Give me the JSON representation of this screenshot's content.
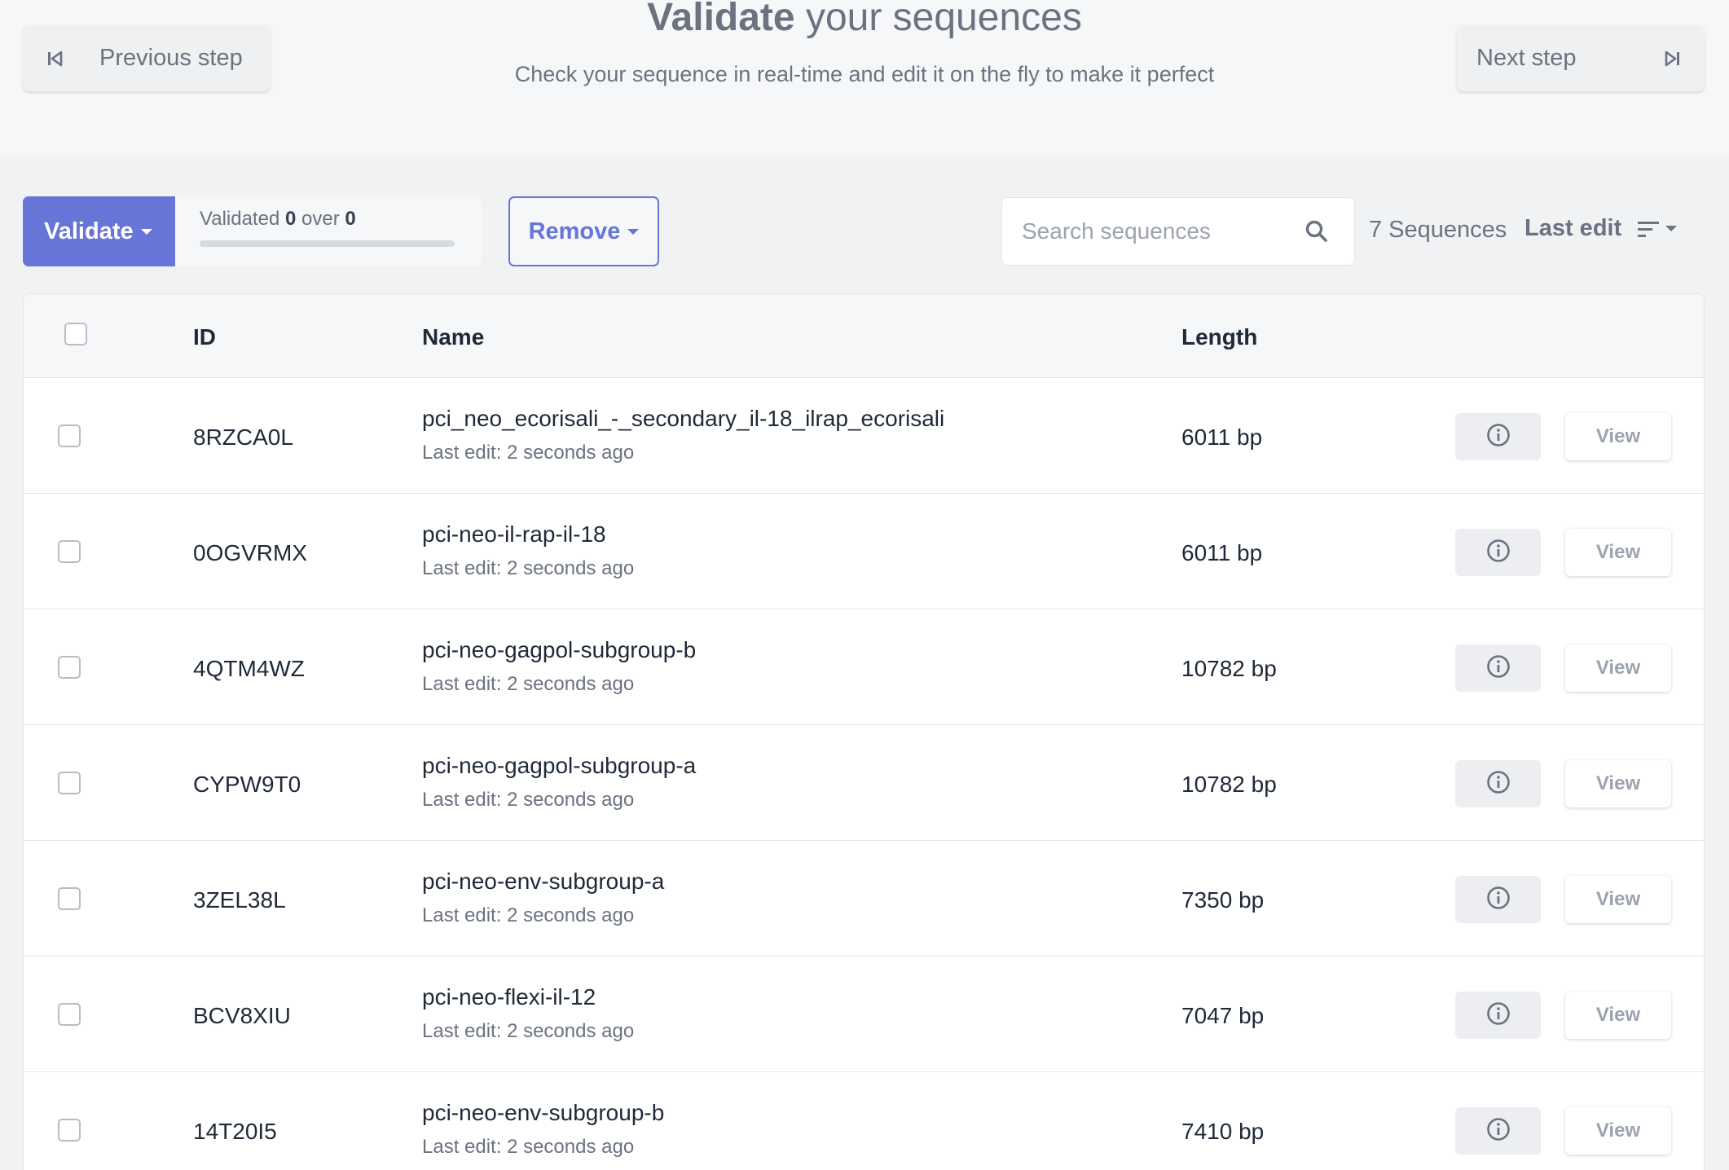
{
  "header": {
    "prev_label": "Previous step",
    "next_label": "Next step",
    "title_bold": "Validate",
    "title_rest": " your sequences",
    "subtitle": "Check your sequence in real-time and edit it on the fly to make it perfect"
  },
  "toolbar": {
    "validate_label": "Validate",
    "validated_prefix": "Validated ",
    "validated_count": "0",
    "validated_mid": " over ",
    "validated_total": "0",
    "progress_fraction": 0,
    "remove_label": "Remove",
    "search_placeholder": "Search sequences",
    "search_value": "",
    "count_label": "7 Sequences",
    "sort_label": "Last edit"
  },
  "table": {
    "columns": {
      "id": "ID",
      "name": "Name",
      "length": "Length"
    },
    "view_label": "View",
    "rows": [
      {
        "id": "8RZCA0L",
        "name": "pci_neo_ecorisali_-_secondary_il-18_ilrap_ecorisali",
        "subtitle": "Last edit: 2 seconds ago",
        "length": "6011 bp"
      },
      {
        "id": "0OGVRMX",
        "name": "pci-neo-il-rap-il-18",
        "subtitle": "Last edit: 2 seconds ago",
        "length": "6011 bp"
      },
      {
        "id": "4QTM4WZ",
        "name": "pci-neo-gagpol-subgroup-b",
        "subtitle": "Last edit: 2 seconds ago",
        "length": "10782 bp"
      },
      {
        "id": "CYPW9T0",
        "name": "pci-neo-gagpol-subgroup-a",
        "subtitle": "Last edit: 2 seconds ago",
        "length": "10782 bp"
      },
      {
        "id": "3ZEL38L",
        "name": "pci-neo-env-subgroup-a",
        "subtitle": "Last edit: 2 seconds ago",
        "length": "7350 bp"
      },
      {
        "id": "BCV8XIU",
        "name": "pci-neo-flexi-il-12",
        "subtitle": "Last edit: 2 seconds ago",
        "length": "7047 bp"
      },
      {
        "id": "14T20I5",
        "name": "pci-neo-env-subgroup-b",
        "subtitle": "Last edit: 2 seconds ago",
        "length": "7410 bp"
      }
    ]
  },
  "icons": {
    "prev": "skip-back-icon",
    "next": "skip-forward-icon",
    "search": "search-icon",
    "sort": "sort-lines-icon",
    "info": "info-circle-icon"
  },
  "colors": {
    "accent": "#6875d8",
    "header_bg": "#f6f7f9",
    "page_bg": "#f1f2f4"
  }
}
